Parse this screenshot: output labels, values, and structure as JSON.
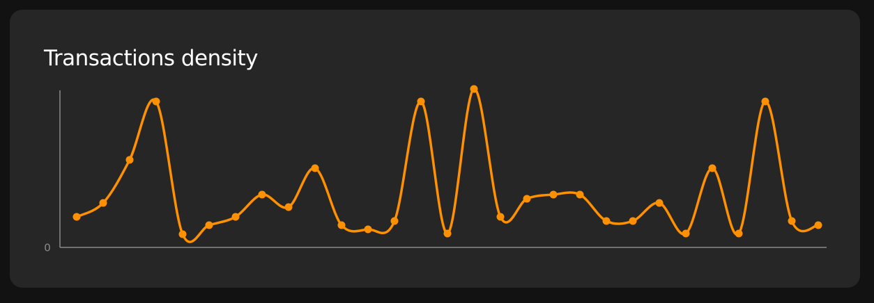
{
  "chart_data": {
    "type": "line",
    "title": "Transactions density",
    "smooth": true,
    "x": [
      1,
      2,
      3,
      4,
      5,
      6,
      7,
      8,
      9,
      10,
      11,
      12,
      13,
      14,
      15,
      16,
      17,
      18,
      19,
      20,
      21,
      22,
      23,
      24,
      25,
      26,
      27,
      28,
      29
    ],
    "series": [
      {
        "values": [
          44,
          64,
          126,
          210,
          19,
          32,
          44,
          76,
          58,
          114,
          32,
          26,
          38,
          210,
          20,
          228,
          44,
          70,
          76,
          76,
          38,
          38,
          64,
          20,
          114,
          20,
          210,
          38,
          32
        ]
      }
    ],
    "ylim": [
      0,
      228
    ],
    "y_tick_labels": [
      "0"
    ],
    "x_tick_labels": [],
    "grid": false,
    "legend": "none",
    "colors": {
      "line": "#ff9100",
      "axis": "#8a8a8a",
      "background": "#262626",
      "title": "#ffffff"
    }
  }
}
